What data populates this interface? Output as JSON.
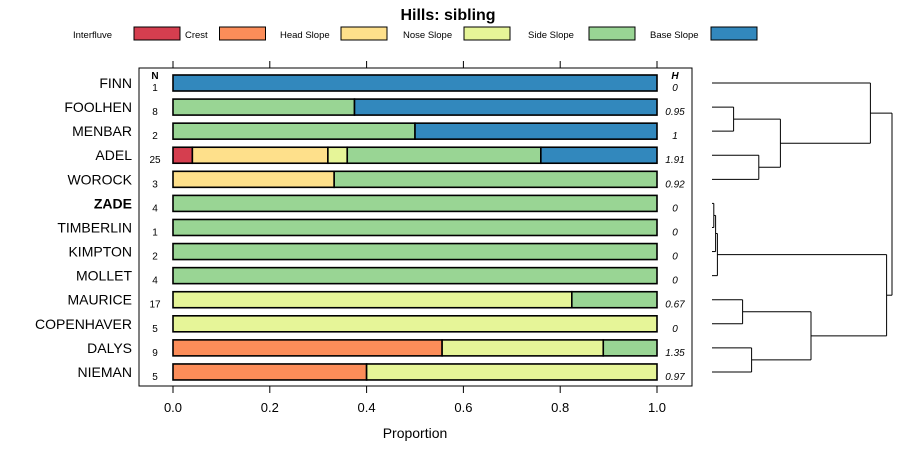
{
  "chart_data": {
    "type": "stacked-bar",
    "title": "Hills: sibling",
    "xlabel": "Proportion",
    "xlim": [
      0,
      1
    ],
    "xticks": [
      "0.0",
      "0.2",
      "0.4",
      "0.6",
      "0.8",
      "1.0"
    ],
    "n_header": "N",
    "h_header": "H",
    "legend": [
      {
        "name": "Interfluve",
        "color": "#d53e4f"
      },
      {
        "name": "Crest",
        "color": "#fc8d59"
      },
      {
        "name": "Head Slope",
        "color": "#fee08b"
      },
      {
        "name": "Nose Slope",
        "color": "#e6f598"
      },
      {
        "name": "Side Slope",
        "color": "#99d594"
      },
      {
        "name": "Base Slope",
        "color": "#3288bd"
      }
    ],
    "rows": [
      {
        "label": "FINN",
        "n": "1",
        "h": "0",
        "bold": false,
        "values": [
          0,
          0,
          0,
          0,
          0,
          1.0
        ]
      },
      {
        "label": "FOOLHEN",
        "n": "8",
        "h": "0.95",
        "bold": false,
        "values": [
          0,
          0,
          0,
          0,
          0.375,
          0.625
        ]
      },
      {
        "label": "MENBAR",
        "n": "2",
        "h": "1",
        "bold": false,
        "values": [
          0,
          0,
          0,
          0,
          0.5,
          0.5
        ]
      },
      {
        "label": "ADEL",
        "n": "25",
        "h": "1.91",
        "bold": false,
        "values": [
          0.04,
          0,
          0.28,
          0.04,
          0.4,
          0.24
        ]
      },
      {
        "label": "WOROCK",
        "n": "3",
        "h": "0.92",
        "bold": false,
        "values": [
          0,
          0,
          0.333,
          0,
          0.667,
          0
        ]
      },
      {
        "label": "ZADE",
        "n": "4",
        "h": "0",
        "bold": true,
        "values": [
          0,
          0,
          0,
          0,
          1.0,
          0
        ]
      },
      {
        "label": "TIMBERLIN",
        "n": "1",
        "h": "0",
        "bold": false,
        "values": [
          0,
          0,
          0,
          0,
          1.0,
          0
        ]
      },
      {
        "label": "KIMPTON",
        "n": "2",
        "h": "0",
        "bold": false,
        "values": [
          0,
          0,
          0,
          0,
          1.0,
          0
        ]
      },
      {
        "label": "MOLLET",
        "n": "4",
        "h": "0",
        "bold": false,
        "values": [
          0,
          0,
          0,
          0,
          1.0,
          0
        ]
      },
      {
        "label": "MAURICE",
        "n": "17",
        "h": "0.67",
        "bold": false,
        "values": [
          0,
          0,
          0,
          0.824,
          0.176,
          0
        ]
      },
      {
        "label": "COPENHAVER",
        "n": "5",
        "h": "0",
        "bold": false,
        "values": [
          0,
          0,
          0,
          1.0,
          0,
          0
        ]
      },
      {
        "label": "DALYS",
        "n": "9",
        "h": "1.35",
        "bold": false,
        "values": [
          0,
          0.556,
          0,
          0.333,
          0.111,
          0
        ]
      },
      {
        "label": "NIEMAN",
        "n": "5",
        "h": "0.97",
        "bold": false,
        "values": [
          0,
          0.4,
          0,
          0.6,
          0,
          0
        ]
      }
    ],
    "dendrogram": {
      "leaf_order": [
        "FINN",
        "FOOLHEN",
        "MENBAR",
        "ADEL",
        "WOROCK",
        "ZADE",
        "TIMBERLIN",
        "KIMPTON",
        "MOLLET",
        "MAURICE",
        "COPENHAVER",
        "DALYS",
        "NIEMAN"
      ],
      "merges": [
        {
          "a": "FOOLHEN",
          "b": "MENBAR",
          "height": 0.12
        },
        {
          "a": "ADEL",
          "b": "WOROCK",
          "height": 0.26
        },
        {
          "a": "m0",
          "b": "m1",
          "height": 0.38
        },
        {
          "a": "FINN",
          "b": "m2",
          "height": 0.88
        },
        {
          "a": "ZADE",
          "b": "TIMBERLIN",
          "height": 0.01
        },
        {
          "a": "m4",
          "b": "KIMPTON",
          "height": 0.02
        },
        {
          "a": "m5",
          "b": "MOLLET",
          "height": 0.03
        },
        {
          "a": "MAURICE",
          "b": "COPENHAVER",
          "height": 0.17
        },
        {
          "a": "DALYS",
          "b": "NIEMAN",
          "height": 0.22
        },
        {
          "a": "m7",
          "b": "m8",
          "height": 0.55
        },
        {
          "a": "m6",
          "b": "m9",
          "height": 0.97
        },
        {
          "a": "m3",
          "b": "m10",
          "height": 1.0
        }
      ]
    }
  }
}
